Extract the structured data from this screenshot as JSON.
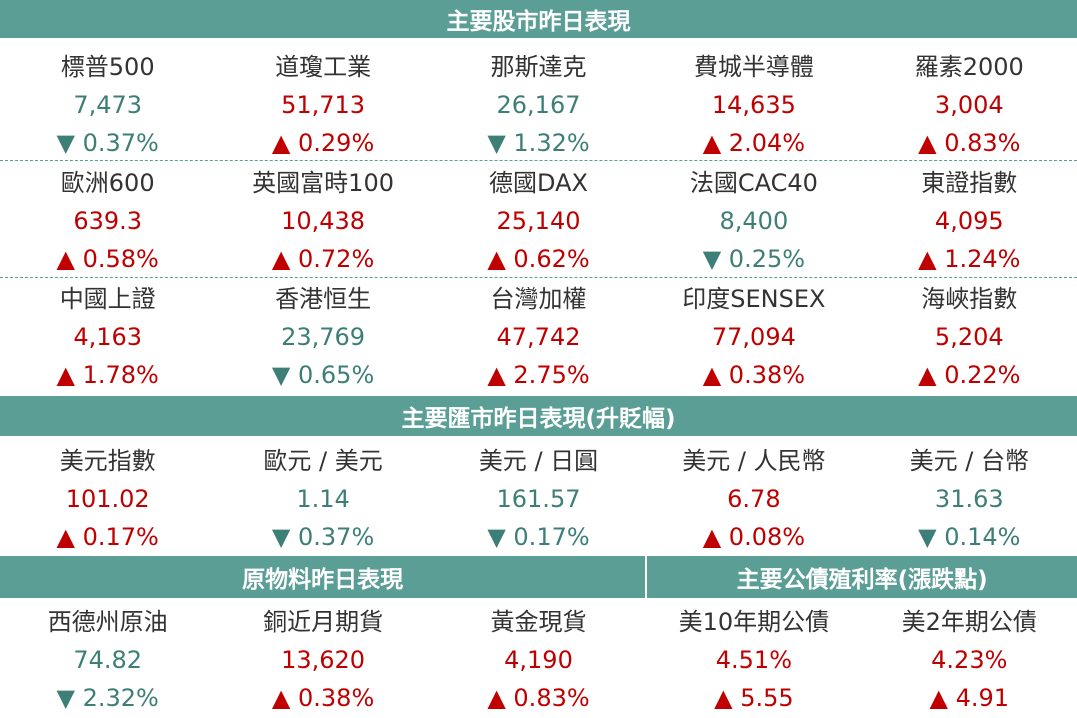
{
  "sections": [
    {
      "title": "主要股市昨日表現",
      "rows": [
        [
          {
            "name": "標普500",
            "value": "7,473",
            "change": "▼ 0.37%",
            "color": "#3d7f77"
          },
          {
            "name": "道瓊工業",
            "value": "51,713",
            "change": "▲ 0.29%",
            "color": "#c00000"
          },
          {
            "name": "那斯達克",
            "value": "26,167",
            "change": "▼ 1.32%",
            "color": "#3d7f77"
          },
          {
            "name": "費城半導體",
            "value": "14,635",
            "change": "▲ 2.04%",
            "color": "#c00000"
          },
          {
            "name": "羅素2000",
            "value": "3,004",
            "change": "▲ 0.83%",
            "color": "#c00000"
          }
        ],
        [
          {
            "name": "歐洲600",
            "value": "639.3",
            "change": "▲ 0.58%",
            "color": "#c00000"
          },
          {
            "name": "英國富時100",
            "value": "10,438",
            "change": "▲ 0.72%",
            "color": "#c00000"
          },
          {
            "name": "德國DAX",
            "value": "25,140",
            "change": "▲ 0.62%",
            "color": "#c00000"
          },
          {
            "name": "法國CAC40",
            "value": "8,400",
            "change": "▼ 0.25%",
            "color": "#3d7f77"
          },
          {
            "name": "東證指數",
            "value": "4,095",
            "change": "▲ 1.24%",
            "color": "#c00000"
          }
        ],
        [
          {
            "name": "中國上證",
            "value": "4,163",
            "change": "▲ 1.78%",
            "color": "#c00000"
          },
          {
            "name": "香港恒生",
            "value": "23,769",
            "change": "▼ 0.65%",
            "color": "#3d7f77"
          },
          {
            "name": "台灣加權",
            "value": "47,742",
            "change": "▲ 2.75%",
            "color": "#c00000"
          },
          {
            "name": "印度SENSEX",
            "value": "77,094",
            "change": "▲ 0.38%",
            "color": "#c00000"
          },
          {
            "name": "海峽指數",
            "value": "5,204",
            "change": "▲ 0.22%",
            "color": "#c00000"
          }
        ]
      ]
    },
    {
      "title": "主要匯市昨日表現(升貶幅)",
      "rows": [
        [
          {
            "name": "美元指數",
            "value": "101.02",
            "change": "▲ 0.17%",
            "color": "#c00000"
          },
          {
            "name": "歐元 / 美元",
            "value": "1.14",
            "change": "▼ 0.37%",
            "color": "#3d7f77"
          },
          {
            "name": "美元 / 日圓",
            "value": "161.57",
            "change": "▼ 0.17%",
            "color": "#3d7f77"
          },
          {
            "name": "美元 / 人民幣",
            "value": "6.78",
            "change": "▲ 0.08%",
            "color": "#c00000"
          },
          {
            "name": "美元 / 台幣",
            "value": "31.63",
            "change": "▼ 0.14%",
            "color": "#3d7f77"
          }
        ]
      ]
    },
    {
      "groups": [
        {
          "title": "原物料昨日表現",
          "cells": [
            {
              "name": "西德州原油",
              "value": "74.82",
              "change": "▼ 2.32%",
              "color": "#3d7f77"
            },
            {
              "name": "銅近月期貨",
              "value": "13,620",
              "change": "▲ 0.38%",
              "color": "#c00000"
            },
            {
              "name": "黃金現貨",
              "value": "4,190",
              "change": "▲ 0.83%",
              "color": "#c00000"
            }
          ]
        },
        {
          "title": "主要公債殖利率(漲跌點)",
          "cells": [
            {
              "name": "美10年期公債",
              "value": "4.51%",
              "change": "▲ 5.55",
              "color": "#c00000"
            },
            {
              "name": "美2年期公債",
              "value": "4.23%",
              "change": "▲ 4.91",
              "color": "#c00000"
            }
          ]
        }
      ]
    }
  ]
}
